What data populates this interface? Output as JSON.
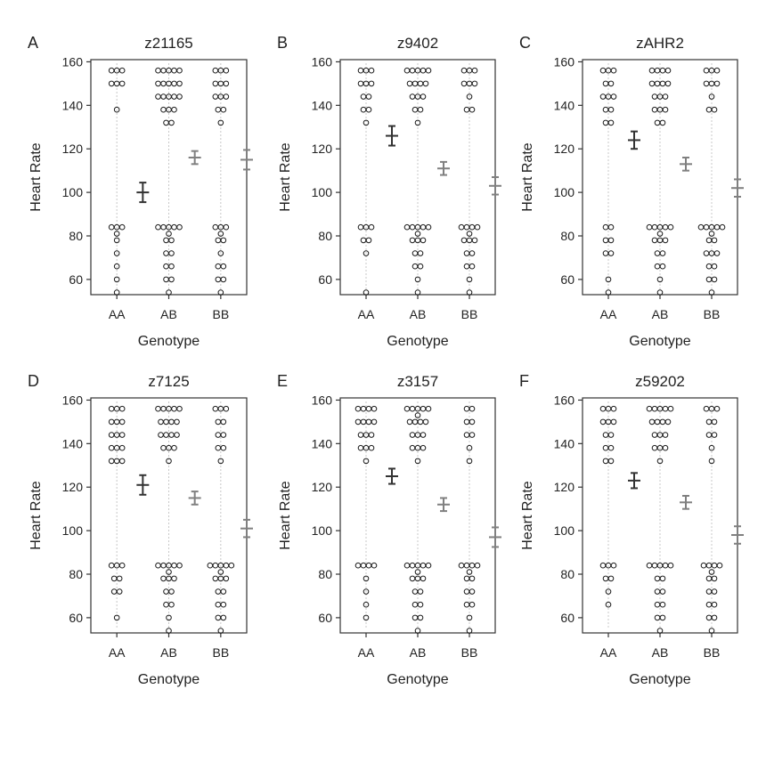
{
  "chart_data": [
    {
      "type": "scatter",
      "letter": "A",
      "title": "z21165",
      "xlabel": "Genotype",
      "ylabel": "Heart Rate",
      "ylim": [
        53,
        161
      ],
      "yticks": [
        60,
        80,
        100,
        120,
        140,
        160
      ],
      "categories": [
        "AA",
        "AB",
        "BB"
      ],
      "points": [
        [
          156,
          156,
          156,
          150,
          150,
          150,
          138,
          84,
          84,
          84,
          81,
          78,
          72,
          66,
          60,
          54
        ],
        [
          156,
          156,
          156,
          156,
          156,
          150,
          150,
          150,
          150,
          150,
          144,
          144,
          144,
          144,
          144,
          138,
          138,
          138,
          132,
          132,
          84,
          84,
          84,
          84,
          84,
          81,
          78,
          78,
          72,
          72,
          66,
          66,
          60,
          60,
          54
        ],
        [
          156,
          156,
          156,
          150,
          150,
          150,
          144,
          144,
          144,
          138,
          138,
          132,
          84,
          84,
          84,
          81,
          78,
          78,
          72,
          66,
          66,
          60,
          60,
          54
        ]
      ],
      "mean": [
        100,
        116,
        115
      ],
      "error": [
        4.5,
        3,
        4.5
      ]
    },
    {
      "type": "scatter",
      "letter": "B",
      "title": "z9402",
      "xlabel": "Genotype",
      "ylabel": "Heart Rate",
      "ylim": [
        53,
        161
      ],
      "yticks": [
        60,
        80,
        100,
        120,
        140,
        160
      ],
      "categories": [
        "AA",
        "AB",
        "BB"
      ],
      "points": [
        [
          156,
          156,
          156,
          150,
          150,
          150,
          144,
          144,
          138,
          138,
          132,
          84,
          84,
          84,
          78,
          78,
          72,
          54
        ],
        [
          156,
          156,
          156,
          156,
          156,
          150,
          150,
          150,
          150,
          144,
          144,
          144,
          138,
          138,
          132,
          84,
          84,
          84,
          84,
          84,
          81,
          78,
          78,
          78,
          72,
          72,
          66,
          66,
          60,
          54
        ],
        [
          156,
          156,
          156,
          150,
          150,
          150,
          144,
          138,
          138,
          84,
          84,
          84,
          84,
          81,
          78,
          78,
          78,
          72,
          72,
          66,
          66,
          60,
          54
        ]
      ],
      "mean": [
        126,
        111,
        103
      ],
      "error": [
        4.5,
        3,
        4
      ]
    },
    {
      "type": "scatter",
      "letter": "C",
      "title": "zAHR2",
      "xlabel": "Genotype",
      "ylabel": "Heart Rate",
      "ylim": [
        53,
        161
      ],
      "yticks": [
        60,
        80,
        100,
        120,
        140,
        160
      ],
      "categories": [
        "AA",
        "AB",
        "BB"
      ],
      "points": [
        [
          156,
          156,
          156,
          150,
          150,
          144,
          144,
          144,
          138,
          138,
          132,
          132,
          84,
          84,
          78,
          78,
          72,
          72,
          60,
          54
        ],
        [
          156,
          156,
          156,
          156,
          150,
          150,
          150,
          150,
          144,
          144,
          144,
          138,
          138,
          138,
          132,
          132,
          84,
          84,
          84,
          84,
          84,
          81,
          78,
          78,
          78,
          72,
          72,
          66,
          66,
          60,
          54
        ],
        [
          156,
          156,
          156,
          150,
          150,
          150,
          144,
          138,
          138,
          84,
          84,
          84,
          84,
          84,
          81,
          78,
          78,
          72,
          72,
          72,
          66,
          66,
          60,
          60,
          54
        ]
      ],
      "mean": [
        124,
        113,
        102
      ],
      "error": [
        4,
        3,
        4
      ]
    },
    {
      "type": "scatter",
      "letter": "D",
      "title": "z7125",
      "xlabel": "Genotype",
      "ylabel": "Heart Rate",
      "ylim": [
        53,
        161
      ],
      "yticks": [
        60,
        80,
        100,
        120,
        140,
        160
      ],
      "categories": [
        "AA",
        "AB",
        "BB"
      ],
      "points": [
        [
          156,
          156,
          156,
          150,
          150,
          150,
          144,
          144,
          144,
          138,
          138,
          138,
          132,
          132,
          132,
          84,
          84,
          84,
          78,
          78,
          72,
          72,
          60
        ],
        [
          156,
          156,
          156,
          156,
          156,
          150,
          150,
          150,
          150,
          144,
          144,
          144,
          144,
          138,
          138,
          138,
          132,
          84,
          84,
          84,
          84,
          84,
          81,
          78,
          78,
          78,
          72,
          72,
          66,
          66,
          60,
          54
        ],
        [
          156,
          156,
          156,
          150,
          150,
          144,
          144,
          138,
          138,
          132,
          84,
          84,
          84,
          84,
          84,
          81,
          78,
          78,
          78,
          72,
          72,
          66,
          66,
          60,
          60,
          54
        ]
      ],
      "mean": [
        121,
        115,
        101
      ],
      "error": [
        4.5,
        3,
        4
      ]
    },
    {
      "type": "scatter",
      "letter": "E",
      "title": "z3157",
      "xlabel": "Genotype",
      "ylabel": "Heart Rate",
      "ylim": [
        53,
        161
      ],
      "yticks": [
        60,
        80,
        100,
        120,
        140,
        160
      ],
      "categories": [
        "AA",
        "AB",
        "BB"
      ],
      "points": [
        [
          156,
          156,
          156,
          156,
          150,
          150,
          150,
          150,
          144,
          144,
          144,
          138,
          138,
          138,
          132,
          84,
          84,
          84,
          84,
          78,
          72,
          66,
          60
        ],
        [
          156,
          156,
          156,
          156,
          156,
          153,
          150,
          150,
          150,
          150,
          144,
          144,
          144,
          138,
          138,
          138,
          132,
          84,
          84,
          84,
          84,
          84,
          81,
          78,
          78,
          78,
          72,
          72,
          66,
          66,
          60,
          60,
          54
        ],
        [
          156,
          156,
          150,
          150,
          144,
          144,
          138,
          132,
          84,
          84,
          84,
          84,
          81,
          78,
          78,
          72,
          72,
          66,
          66,
          60,
          54
        ]
      ],
      "mean": [
        125,
        112,
        97
      ],
      "error": [
        3.5,
        3,
        4.5
      ]
    },
    {
      "type": "scatter",
      "letter": "F",
      "title": "z59202",
      "xlabel": "Genotype",
      "ylabel": "Heart Rate",
      "ylim": [
        53,
        161
      ],
      "yticks": [
        60,
        80,
        100,
        120,
        140,
        160
      ],
      "categories": [
        "AA",
        "AB",
        "BB"
      ],
      "points": [
        [
          156,
          156,
          156,
          150,
          150,
          150,
          144,
          144,
          138,
          138,
          132,
          132,
          84,
          84,
          84,
          78,
          78,
          72,
          66
        ],
        [
          156,
          156,
          156,
          156,
          156,
          150,
          150,
          150,
          150,
          144,
          144,
          144,
          138,
          138,
          138,
          132,
          84,
          84,
          84,
          84,
          84,
          78,
          78,
          72,
          72,
          66,
          66,
          60,
          60,
          54
        ],
        [
          156,
          156,
          156,
          150,
          150,
          144,
          144,
          138,
          132,
          84,
          84,
          84,
          84,
          81,
          78,
          78,
          72,
          72,
          66,
          66,
          60,
          60,
          54
        ]
      ],
      "mean": [
        123,
        113,
        98
      ],
      "error": [
        3.5,
        3,
        4
      ]
    }
  ],
  "colors": {
    "points": "#1a1a1a",
    "mean_bar_AA": "#333333",
    "mean_bar_other": "#808080",
    "guide_line": "#c8c8c8",
    "axis": "#333333"
  }
}
